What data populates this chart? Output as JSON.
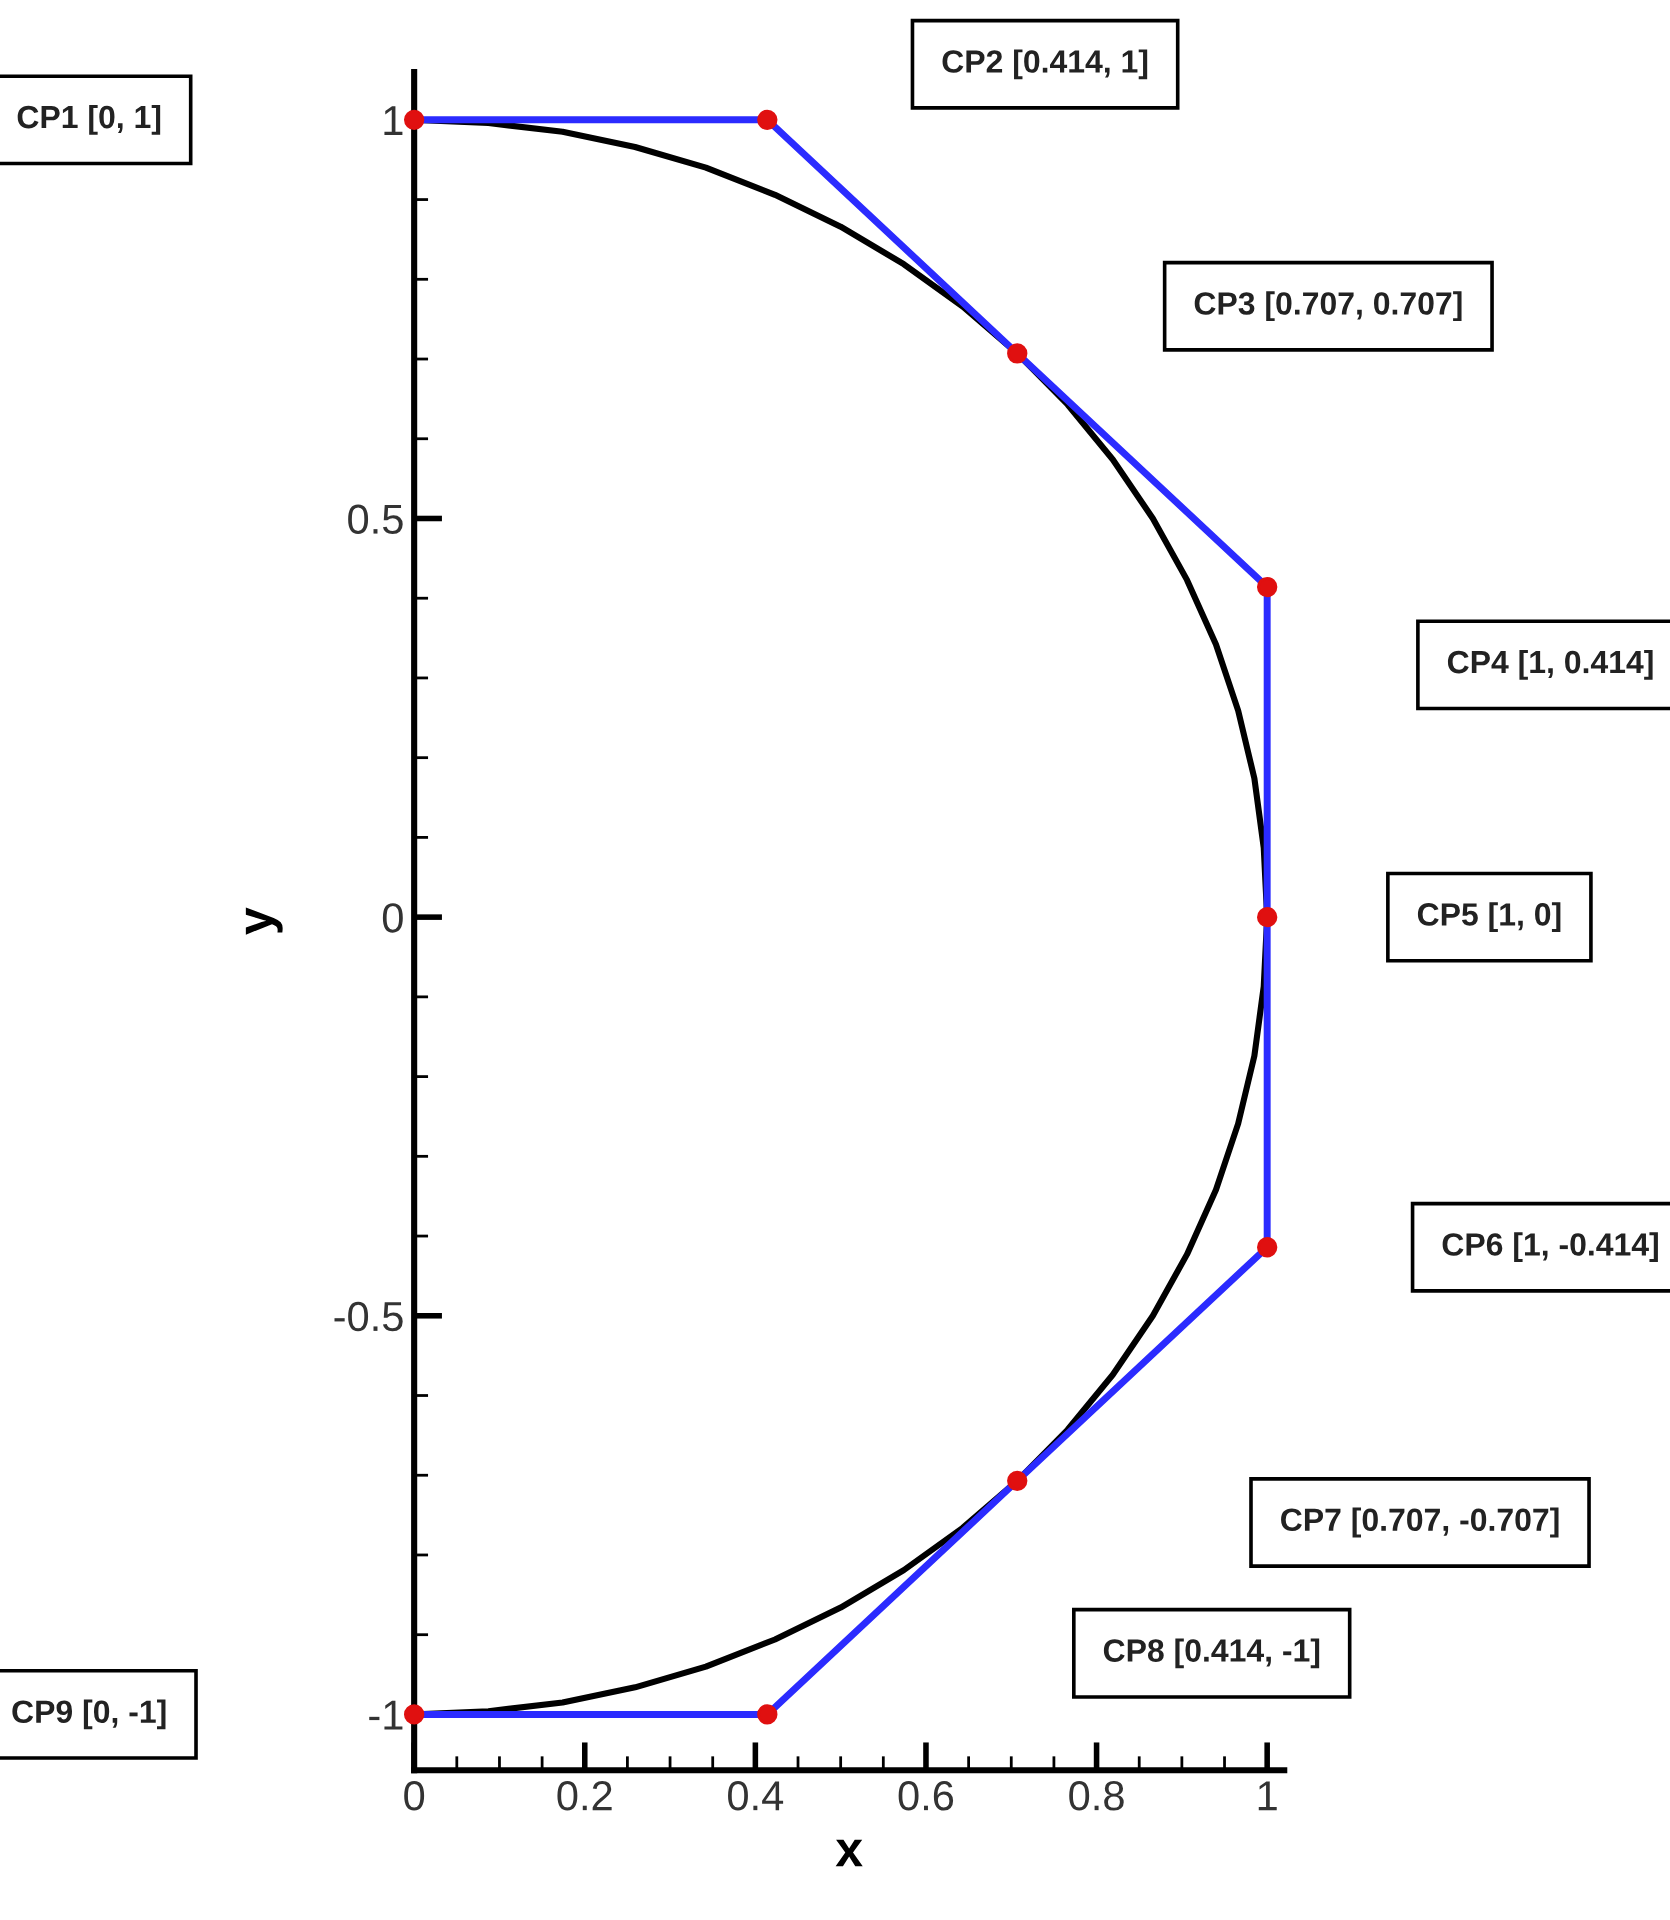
{
  "chart_data": {
    "type": "line",
    "xlabel": "x",
    "ylabel": "y",
    "xlim": [
      0,
      1.02
    ],
    "ylim": [
      -1.07,
      1.06
    ],
    "xticks": [
      0,
      0.2,
      0.4,
      0.6,
      0.8,
      1
    ],
    "yticks": [
      -1,
      -0.5,
      0,
      0.5,
      1
    ],
    "grid": false,
    "legend": false,
    "series": [
      {
        "color": "#000000",
        "marker": "none",
        "x": [
          0,
          0.087,
          0.174,
          0.259,
          0.342,
          0.423,
          0.5,
          0.574,
          0.643,
          0.707,
          0.766,
          0.819,
          0.866,
          0.906,
          0.94,
          0.966,
          0.985,
          0.996,
          1,
          0.996,
          0.985,
          0.966,
          0.94,
          0.906,
          0.866,
          0.819,
          0.766,
          0.707,
          0.643,
          0.574,
          0.5,
          0.423,
          0.342,
          0.259,
          0.174,
          0.087,
          0
        ],
        "values": [
          1,
          0.996,
          0.985,
          0.966,
          0.94,
          0.906,
          0.866,
          0.819,
          0.766,
          0.707,
          0.643,
          0.574,
          0.5,
          0.423,
          0.342,
          0.259,
          0.174,
          0.087,
          0,
          -0.087,
          -0.174,
          -0.259,
          -0.342,
          -0.423,
          -0.5,
          -0.574,
          -0.643,
          -0.707,
          -0.766,
          -0.819,
          -0.866,
          -0.906,
          -0.94,
          -0.966,
          -0.985,
          -0.996,
          -1
        ]
      },
      {
        "color": "#2b2bff",
        "marker": "none",
        "x": [
          0,
          0.414,
          0.707,
          1,
          1,
          1,
          0.707,
          0.414,
          0
        ],
        "values": [
          1,
          1,
          0.707,
          0.414,
          0,
          -0.414,
          -0.707,
          -1,
          -1
        ]
      },
      {
        "type": "scatter",
        "color": "#e01010",
        "marker": "circle",
        "x": [
          0,
          0.414,
          0.707,
          1,
          1,
          1,
          0.707,
          0.414,
          0
        ],
        "values": [
          1,
          1,
          0.707,
          0.414,
          0,
          -0.414,
          -0.707,
          -1,
          -1
        ]
      }
    ],
    "annotations": [
      "CP1 [0, 1]",
      "CP2 [0.414, 1]",
      "CP3 [0.707, 0.707]",
      "CP4 [1, 0.414]",
      "CP5 [1, 0]",
      "CP6 [1, -0.414]",
      "CP7 [0.707, -0.707]",
      "CP8 [0.414, -1]",
      "CP9 [0, -1]"
    ]
  }
}
